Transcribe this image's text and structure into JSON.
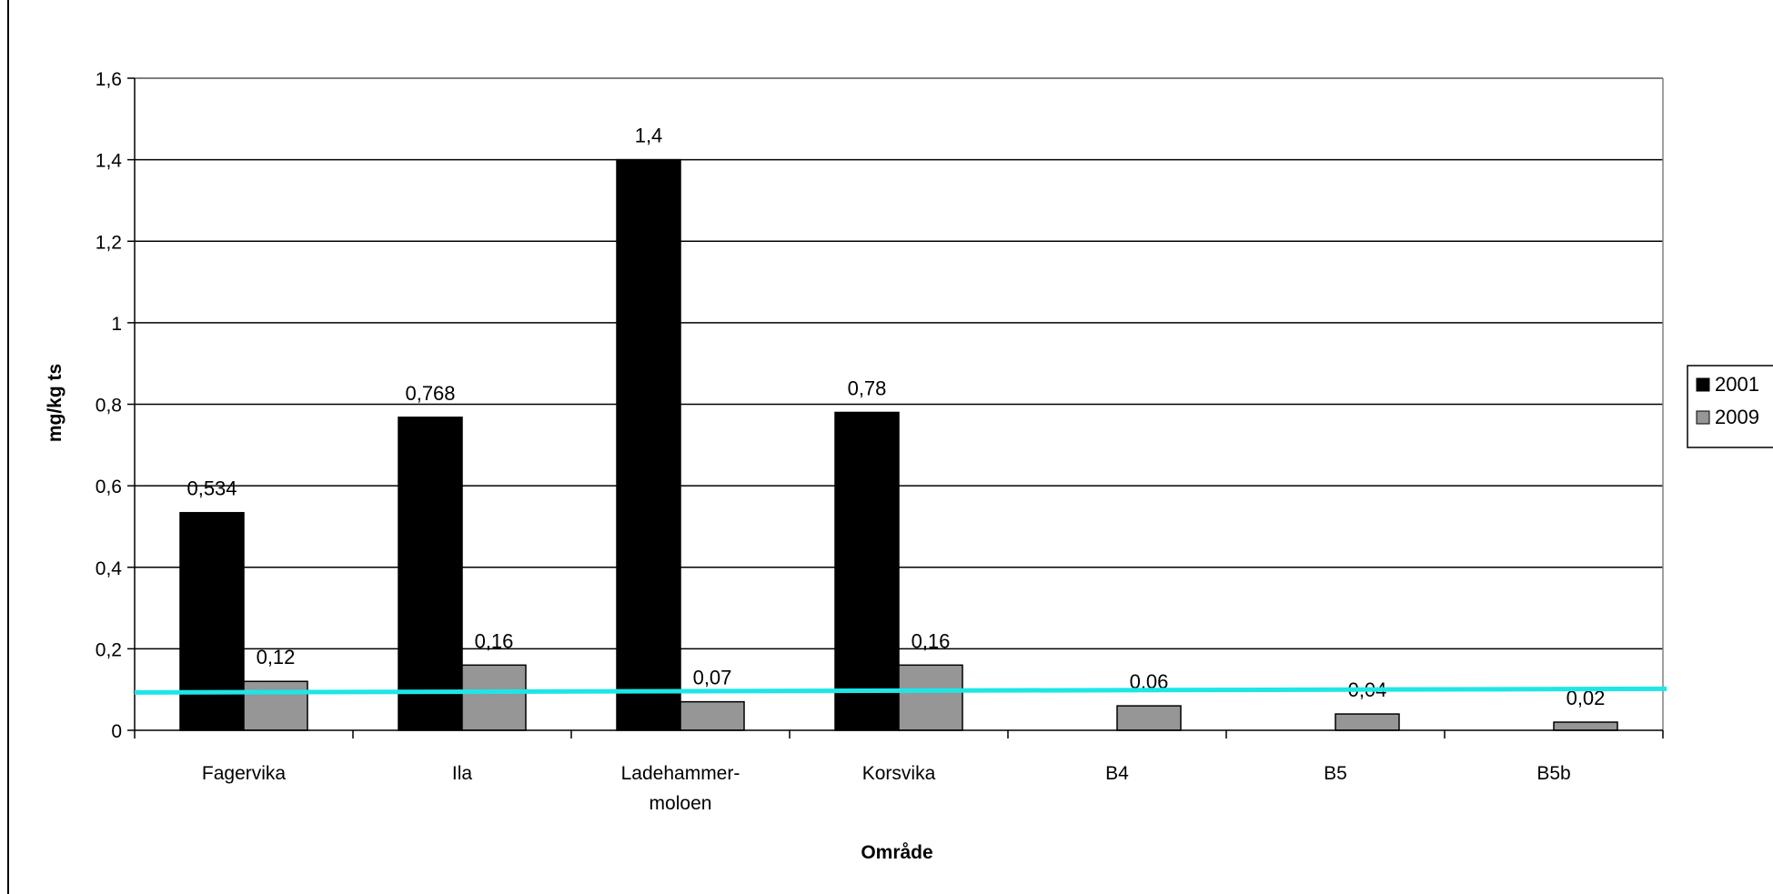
{
  "chart_data": {
    "type": "bar",
    "title": "",
    "xlabel": "Område",
    "ylabel": "mg/kg ts",
    "categories": [
      [
        "Fagervika"
      ],
      [
        "Ila"
      ],
      [
        "Ladehammer-",
        "moloen"
      ],
      [
        "Korsvika"
      ],
      [
        "B4"
      ],
      [
        "B5"
      ],
      [
        "B5b"
      ]
    ],
    "series": [
      {
        "name": "2001",
        "color": "#000000",
        "values": [
          0.534,
          0.768,
          1.4,
          0.78,
          null,
          null,
          null
        ],
        "labels": [
          "0,534",
          "0,768",
          "1,4",
          "0,78",
          "",
          "",
          ""
        ]
      },
      {
        "name": "2009",
        "color": "#969696",
        "values": [
          0.12,
          0.16,
          0.07,
          0.16,
          0.06,
          0.04,
          0.02
        ],
        "labels": [
          "0,12",
          "0,16",
          "0,07",
          "0,16",
          "0,06",
          "0,04",
          "0,02"
        ]
      }
    ],
    "ylim": [
      0,
      1.6
    ],
    "yticks": [
      0,
      0.2,
      0.4,
      0.6,
      0.8,
      1,
      1.2,
      1.4,
      1.6
    ],
    "ytick_labels": [
      "0",
      "0,2",
      "0,4",
      "0,6",
      "0,8",
      "1",
      "1,2",
      "1,4",
      "1,6"
    ],
    "grid": true,
    "legend_position": "right",
    "reference_line": {
      "value": 0.095,
      "color": "#1ee6e6"
    }
  }
}
